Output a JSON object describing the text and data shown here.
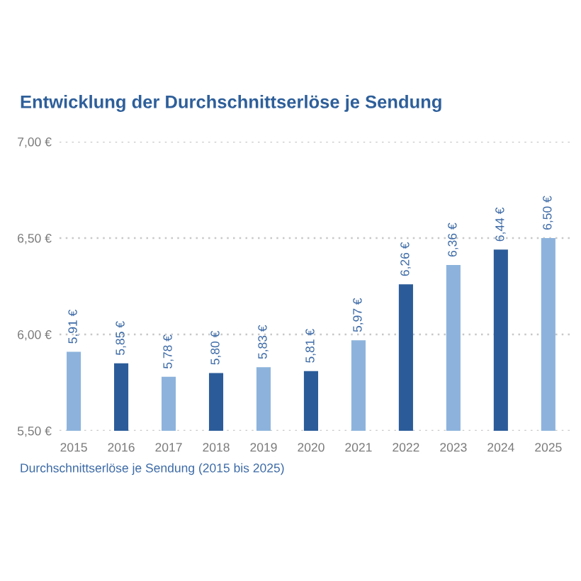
{
  "chart_data": {
    "type": "bar",
    "title": "Entwicklung der Durchschnittserlöse je Sendung",
    "categories": [
      "2015",
      "2016",
      "2017",
      "2018",
      "2019",
      "2020",
      "2021",
      "2022",
      "2023",
      "2024",
      "2025"
    ],
    "values": [
      5.91,
      5.85,
      5.78,
      5.8,
      5.83,
      5.81,
      5.97,
      6.26,
      6.36,
      6.44,
      6.5
    ],
    "colors": [
      "#8db3dc",
      "#2b5c99",
      "#8db3dc",
      "#2b5c99",
      "#8db3dc",
      "#2b5c99",
      "#8db3dc",
      "#2b5c99",
      "#8db3dc",
      "#2b5c99",
      "#8db3dc"
    ],
    "value_labels": [
      "5,91 €",
      "5,85 €",
      "5,78 €",
      "5,80 €",
      "5,83 €",
      "5,81 €",
      "5,97 €",
      "6,26 €",
      "6,36 €",
      "6,44 €",
      "6,50 €"
    ],
    "ylim": [
      5.5,
      7.0
    ],
    "yticks": [
      {
        "value": 5.5,
        "label": "5,50 €"
      },
      {
        "value": 6.0,
        "label": "6,00 €"
      },
      {
        "value": 6.5,
        "label": "6,50 €"
      },
      {
        "value": 7.0,
        "label": "7,00 €"
      }
    ],
    "grid": "y",
    "annotations": [
      "Durchschnittserlöse je Sendung (2015 bis 2025)"
    ]
  }
}
